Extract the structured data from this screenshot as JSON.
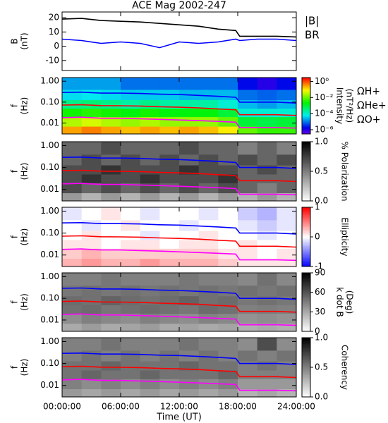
{
  "chart_data": [
    {
      "type": "line",
      "title": "ACE Mag 2002-247",
      "y_label": [
        "B",
        "(nT)"
      ],
      "x": [
        0,
        2,
        4,
        6,
        8,
        10,
        12,
        14,
        16,
        17.8,
        18.2,
        20,
        22,
        24
      ],
      "series": [
        {
          "name": "|B|",
          "color": "#000000",
          "values": [
            19,
            19.5,
            18,
            17.5,
            17,
            16,
            15,
            14,
            12,
            11,
            7,
            7,
            7,
            6.5
          ]
        },
        {
          "name": "BR",
          "color": "#0000ff",
          "values": [
            5,
            4,
            2,
            3,
            2,
            -1,
            3,
            2,
            3,
            5,
            4,
            5,
            5,
            4
          ]
        }
      ],
      "ylim": [
        -17,
        24
      ],
      "yticks": [
        -10,
        0,
        10,
        20
      ]
    },
    {
      "type": "heatmap",
      "y_label": [
        "f",
        "(Hz)"
      ],
      "colorbar_label": [
        "Intensity",
        "(nT²/Hz)"
      ],
      "colormap": "rainbow",
      "color_scale": "log",
      "clim": [
        3e-07,
        3
      ],
      "cticks": [
        {
          "value": 1,
          "label": "10⁰"
        },
        {
          "value": 0.01,
          "label": "10⁻²"
        },
        {
          "value": 0.0001,
          "label": "10⁻⁴"
        },
        {
          "value": 1e-06,
          "label": "10⁻⁶"
        }
      ],
      "time_bins": [
        0,
        2,
        4,
        6,
        8,
        10,
        12,
        14,
        16,
        18,
        20,
        22,
        24
      ],
      "freq_bins": [
        0.003,
        0.007,
        0.02,
        0.05,
        0.13,
        0.4,
        1.5
      ],
      "z": [
        [
          0.3,
          0.5,
          0.3,
          0.2,
          0.3,
          0.2,
          0.3,
          0.2,
          0.1,
          0.01,
          0.005,
          0.005
        ],
        [
          0.03,
          0.05,
          0.03,
          0.02,
          0.03,
          0.02,
          0.02,
          0.02,
          0.01,
          0.001,
          0.0008,
          0.001
        ],
        [
          0.003,
          0.004,
          0.003,
          0.002,
          0.003,
          0.002,
          0.002,
          0.002,
          0.001,
          0.0001,
          0.0001,
          0.0001
        ],
        [
          0.0003,
          0.0004,
          0.0003,
          0.0002,
          0.0003,
          0.0002,
          0.0002,
          0.0002,
          0.0001,
          3e-05,
          2e-05,
          3e-05
        ],
        [
          5e-05,
          6e-05,
          5e-05,
          4e-05,
          4e-05,
          4e-05,
          3e-05,
          3e-05,
          3e-05,
          1e-05,
          8e-06,
          1e-05
        ],
        [
          2e-05,
          2e-05,
          2e-05,
          1e-05,
          1e-05,
          1e-05,
          1e-05,
          1e-05,
          1e-05,
          2e-06,
          1e-06,
          2e-06
        ]
      ],
      "ylim": [
        0.003,
        1.5
      ],
      "yscale": "log",
      "yticks": [
        {
          "value": 1,
          "label": "1.00"
        },
        {
          "value": 0.1,
          "label": "0.10"
        },
        {
          "value": 0.01,
          "label": "0.01"
        }
      ],
      "x": [
        0,
        2,
        4,
        6,
        8,
        10,
        12,
        14,
        16,
        17.8,
        18.2,
        20,
        22,
        24
      ],
      "series": [
        {
          "name": "ΩH+",
          "color": "#0000ff",
          "values": [
            0.29,
            0.3,
            0.27,
            0.27,
            0.26,
            0.24,
            0.23,
            0.21,
            0.19,
            0.17,
            0.1,
            0.1,
            0.1,
            0.09
          ]
        },
        {
          "name": "ΩHe+",
          "color": "#ff0000",
          "values": [
            0.072,
            0.075,
            0.068,
            0.067,
            0.065,
            0.06,
            0.057,
            0.053,
            0.047,
            0.043,
            0.025,
            0.025,
            0.025,
            0.023
          ]
        },
        {
          "name": "ΩO+",
          "color": "#ff00ff",
          "values": [
            0.018,
            0.019,
            0.017,
            0.017,
            0.016,
            0.015,
            0.014,
            0.013,
            0.012,
            0.011,
            0.006,
            0.006,
            0.006,
            0.0057
          ]
        }
      ]
    },
    {
      "type": "heatmap",
      "y_label": [
        "f",
        "(Hz)"
      ],
      "colorbar_label": [
        "% Polarization"
      ],
      "colormap": "gray",
      "clim": [
        0,
        1
      ],
      "cticks": [
        {
          "value": 0,
          "label": "0.0"
        },
        {
          "value": 0.5,
          "label": "0.5"
        },
        {
          "value": 1,
          "label": "1.0"
        }
      ],
      "time_bins": [
        0,
        2,
        4,
        6,
        8,
        10,
        12,
        14,
        16,
        18,
        20,
        22,
        24
      ],
      "freq_bins": [
        0.003,
        0.007,
        0.02,
        0.05,
        0.13,
        0.4,
        1.5
      ],
      "z": [
        [
          0.4,
          0.3,
          0.4,
          0.3,
          0.4,
          0.3,
          0.4,
          0.3,
          0.4,
          0.3,
          0.4,
          0.3
        ],
        [
          0.7,
          0.6,
          0.7,
          0.6,
          0.7,
          0.6,
          0.7,
          0.6,
          0.7,
          0.6,
          0.5,
          0.6
        ],
        [
          0.7,
          0.8,
          0.7,
          0.7,
          0.8,
          0.7,
          0.7,
          0.7,
          0.8,
          0.6,
          0.6,
          0.6
        ],
        [
          0.7,
          0.7,
          0.8,
          0.7,
          0.7,
          0.7,
          0.8,
          0.7,
          0.7,
          0.6,
          0.7,
          0.6
        ],
        [
          0.6,
          0.7,
          0.6,
          0.7,
          0.6,
          0.7,
          0.6,
          0.7,
          0.6,
          0.7,
          0.6,
          0.7
        ],
        [
          0.6,
          0.6,
          0.7,
          0.6,
          0.6,
          0.6,
          0.7,
          0.6,
          0.6,
          0.5,
          0.6,
          0.5
        ]
      ],
      "ylim": [
        0.003,
        1.5
      ],
      "yscale": "log",
      "yticks": [
        {
          "value": 1,
          "label": "1.00"
        },
        {
          "value": 0.1,
          "label": "0.10"
        },
        {
          "value": 0.01,
          "label": "0.01"
        }
      ]
    },
    {
      "type": "heatmap",
      "y_label": [
        "f",
        "(Hz)"
      ],
      "colorbar_label": [
        "Ellipticity"
      ],
      "colormap": "bwr",
      "clim": [
        -1,
        1
      ],
      "cticks": [
        -1,
        0,
        1
      ],
      "time_bins": [
        0,
        2,
        4,
        6,
        8,
        10,
        12,
        14,
        16,
        18,
        20,
        22,
        24
      ],
      "freq_bins": [
        0.003,
        0.007,
        0.02,
        0.05,
        0.13,
        0.4,
        1.5
      ],
      "z": [
        [
          0.3,
          0.4,
          0.3,
          0.3,
          0.4,
          0.3,
          0.3,
          0.3,
          0.2,
          0.1,
          0.1,
          0.1
        ],
        [
          0.2,
          0.3,
          0.2,
          0.2,
          0.2,
          0.2,
          0.2,
          0.2,
          0.1,
          0.1,
          0,
          0.1
        ],
        [
          0.1,
          0.1,
          0,
          0.1,
          0.1,
          0,
          0.1,
          0.1,
          0,
          0.1,
          0,
          0
        ],
        [
          0,
          0.1,
          0,
          0,
          -0.1,
          0,
          0,
          0.1,
          0,
          0,
          -0.1,
          0
        ],
        [
          0,
          -0.1,
          0,
          0.1,
          0,
          0,
          -0.1,
          0,
          0,
          -0.1,
          -0.2,
          -0.1
        ],
        [
          -0.1,
          0,
          0.1,
          0,
          -0.1,
          0,
          0,
          -0.1,
          0,
          -0.2,
          -0.3,
          -0.1
        ]
      ],
      "ylim": [
        0.003,
        1.5
      ],
      "yscale": "log",
      "yticks": [
        {
          "value": 1,
          "label": "1.00"
        },
        {
          "value": 0.1,
          "label": "0.10"
        },
        {
          "value": 0.01,
          "label": "0.01"
        }
      ]
    },
    {
      "type": "heatmap",
      "y_label": [
        "f",
        "(Hz)"
      ],
      "colorbar_label": [
        "k dot B",
        "(Deg)"
      ],
      "colormap": "gray",
      "clim": [
        0,
        90
      ],
      "cticks": [
        0,
        30,
        60,
        90
      ],
      "time_bins": [
        0,
        2,
        4,
        6,
        8,
        10,
        12,
        14,
        16,
        18,
        20,
        22,
        24
      ],
      "freq_bins": [
        0.003,
        0.007,
        0.02,
        0.05,
        0.13,
        0.4,
        1.5
      ],
      "z": [
        [
          30,
          35,
          30,
          32,
          35,
          30,
          33,
          30,
          32,
          28,
          30,
          28
        ],
        [
          40,
          45,
          42,
          40,
          45,
          42,
          40,
          44,
          42,
          38,
          40,
          38
        ],
        [
          50,
          52,
          48,
          50,
          52,
          50,
          48,
          52,
          50,
          45,
          46,
          45
        ],
        [
          52,
          50,
          55,
          52,
          50,
          52,
          55,
          50,
          52,
          48,
          50,
          48
        ],
        [
          48,
          50,
          48,
          50,
          48,
          50,
          48,
          50,
          48,
          50,
          48,
          50
        ],
        [
          45,
          45,
          48,
          45,
          45,
          45,
          48,
          45,
          45,
          42,
          50,
          42
        ]
      ],
      "ylim": [
        0.003,
        1.5
      ],
      "yscale": "log",
      "yticks": [
        {
          "value": 1,
          "label": "1.00"
        },
        {
          "value": 0.1,
          "label": "0.10"
        },
        {
          "value": 0.01,
          "label": "0.01"
        }
      ]
    },
    {
      "type": "heatmap",
      "y_label": [
        "f",
        "(Hz)"
      ],
      "colorbar_label": [
        "Coherency"
      ],
      "colormap": "gray",
      "clim": [
        0,
        1
      ],
      "cticks": [
        {
          "value": 0,
          "label": "0.0"
        },
        {
          "value": 0.5,
          "label": "0.5"
        },
        {
          "value": 1,
          "label": "1.0"
        }
      ],
      "time_bins": [
        0,
        2,
        4,
        6,
        8,
        10,
        12,
        14,
        16,
        18,
        20,
        22,
        24
      ],
      "freq_bins": [
        0.003,
        0.007,
        0.02,
        0.05,
        0.13,
        0.4,
        1.5
      ],
      "z": [
        [
          0.4,
          0.35,
          0.4,
          0.35,
          0.4,
          0.35,
          0.4,
          0.35,
          0.4,
          0.3,
          0.35,
          0.3
        ],
        [
          0.5,
          0.45,
          0.5,
          0.45,
          0.5,
          0.45,
          0.5,
          0.45,
          0.5,
          0.4,
          0.4,
          0.4
        ],
        [
          0.55,
          0.6,
          0.55,
          0.55,
          0.6,
          0.55,
          0.55,
          0.55,
          0.6,
          0.5,
          0.5,
          0.5
        ],
        [
          0.55,
          0.55,
          0.6,
          0.55,
          0.55,
          0.55,
          0.6,
          0.55,
          0.55,
          0.5,
          0.55,
          0.5
        ],
        [
          0.5,
          0.55,
          0.5,
          0.55,
          0.5,
          0.55,
          0.5,
          0.55,
          0.5,
          0.55,
          0.5,
          0.55
        ],
        [
          0.5,
          0.5,
          0.55,
          0.5,
          0.5,
          0.5,
          0.55,
          0.5,
          0.5,
          0.45,
          0.7,
          0.45
        ]
      ],
      "ylim": [
        0.003,
        1.5
      ],
      "yscale": "log",
      "yticks": [
        {
          "value": 1,
          "label": "1.00"
        },
        {
          "value": 0.1,
          "label": "0.10"
        },
        {
          "value": 0.01,
          "label": "0.01"
        }
      ],
      "x_label": "Time (UT)",
      "xlim": [
        0,
        24
      ],
      "xticks": [
        {
          "value": 0,
          "label": "00:00:00"
        },
        {
          "value": 6,
          "label": "06:00:00"
        },
        {
          "value": 12,
          "label": "12:00:00"
        },
        {
          "value": 18,
          "label": "18:00:00"
        },
        {
          "value": 24,
          "label": "24:00:00"
        }
      ]
    }
  ]
}
